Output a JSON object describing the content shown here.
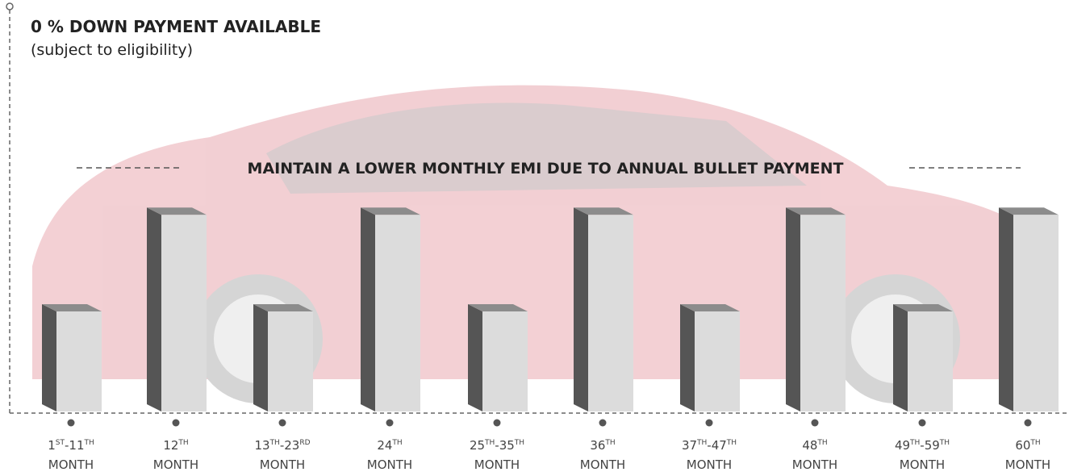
{
  "chart_data": {
    "type": "bar3d",
    "headline": "0 % DOWN PAYMENT AVAILABLE",
    "subheadline": "(subject to eligibility)",
    "title": "MAINTAIN A LOWER MONTHLY EMI DUE TO ANNUAL BULLET PAYMENT",
    "categories": [
      {
        "line1": [
          {
            "text": "1"
          },
          {
            "sup": "ST"
          },
          {
            "text": "-11"
          },
          {
            "sup": "TH"
          }
        ],
        "line2": "MONTH"
      },
      {
        "line1": [
          {
            "text": "12"
          },
          {
            "sup": "TH"
          }
        ],
        "line2": "MONTH"
      },
      {
        "line1": [
          {
            "text": "13"
          },
          {
            "sup": "TH"
          },
          {
            "text": "-23"
          },
          {
            "sup": "RD"
          }
        ],
        "line2": "MONTH"
      },
      {
        "line1": [
          {
            "text": "24"
          },
          {
            "sup": "TH"
          }
        ],
        "line2": "MONTH"
      },
      {
        "line1": [
          {
            "text": "25"
          },
          {
            "sup": "TH"
          },
          {
            "text": "-35"
          },
          {
            "sup": "TH"
          }
        ],
        "line2": "MONTH"
      },
      {
        "line1": [
          {
            "text": "36"
          },
          {
            "sup": "TH"
          }
        ],
        "line2": "MONTH"
      },
      {
        "line1": [
          {
            "text": "37"
          },
          {
            "sup": "TH"
          },
          {
            "text": "-47"
          },
          {
            "sup": "TH"
          }
        ],
        "line2": "MONTH"
      },
      {
        "line1": [
          {
            "text": "48"
          },
          {
            "sup": "TH"
          }
        ],
        "line2": "MONTH"
      },
      {
        "line1": [
          {
            "text": "49"
          },
          {
            "sup": "TH"
          },
          {
            "text": "-59"
          },
          {
            "sup": "TH"
          }
        ],
        "line2": "MONTH"
      },
      {
        "line1": [
          {
            "text": "60"
          },
          {
            "sup": "TH"
          }
        ],
        "line2": "MONTH"
      }
    ],
    "values": [
      1,
      1.9,
      1,
      1.9,
      1,
      1.9,
      1,
      1.9,
      1,
      1.9
    ],
    "ylim": [
      0,
      2
    ],
    "color": "#dcdcdc",
    "side_color": "#555555",
    "top_color": "#8c8c8c"
  }
}
